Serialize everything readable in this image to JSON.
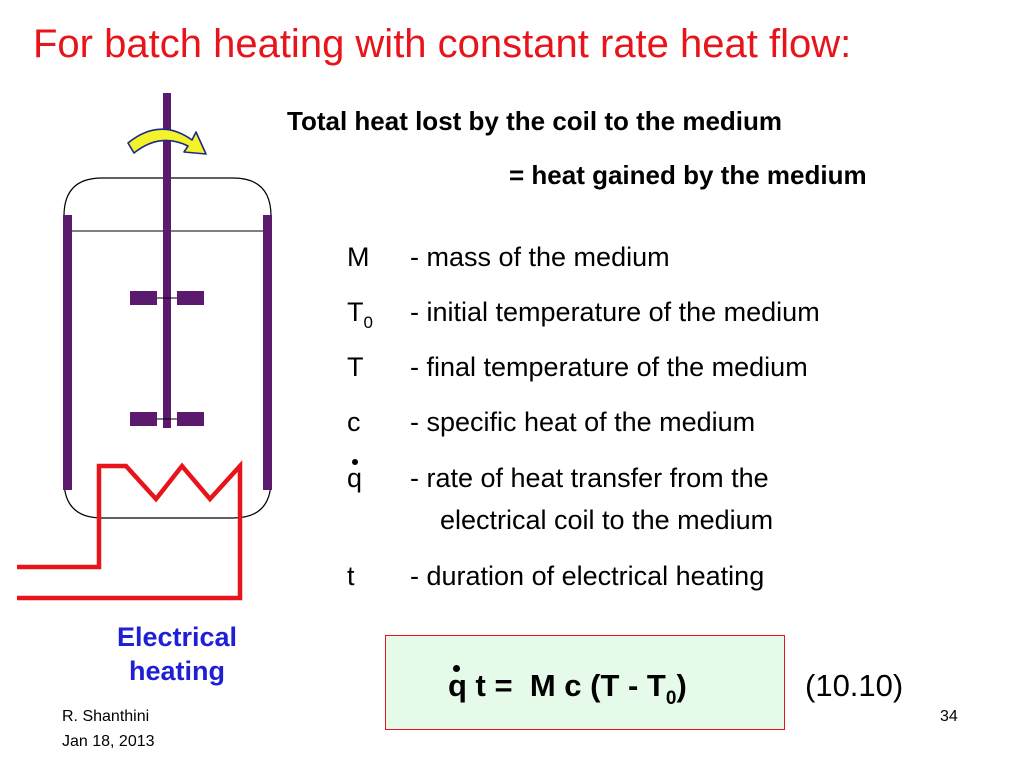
{
  "title": "For batch heating with constant rate heat flow:",
  "subtitle": {
    "line1": "Total heat lost by the coil to the medium",
    "line2": "= heat gained by the medium"
  },
  "definitions": [
    {
      "symbol": "M",
      "description": "- mass of the medium"
    },
    {
      "symbol": "T",
      "subscript": "0",
      "description": "- initial temperature of the medium"
    },
    {
      "symbol": "T",
      "description": "- final temperature of the medium"
    },
    {
      "symbol": "c",
      "description": "- specific heat of the medium"
    },
    {
      "symbol": "q",
      "description": "- rate of heat transfer from the",
      "description_cont": "electrical coil to the medium"
    },
    {
      "symbol": "t",
      "description": "- duration of electrical heating"
    }
  ],
  "equation": {
    "q": "q",
    "lhs_rest": " t = ",
    "rhs": "M c (T - T",
    "rhs_sub": "0",
    "rhs_close": ")",
    "number": "(10.10)"
  },
  "diagram_label": {
    "line1": "Electrical",
    "line2": "heating"
  },
  "footer": {
    "author": "R. Shanthini",
    "date": "Jan 18, 2013",
    "page": "34"
  },
  "colors": {
    "title": "#e8141b",
    "label": "#1f1fd6",
    "wall": "#5b1a6e",
    "coil": "#e8141b",
    "equation_bg": "#e6fae9"
  }
}
